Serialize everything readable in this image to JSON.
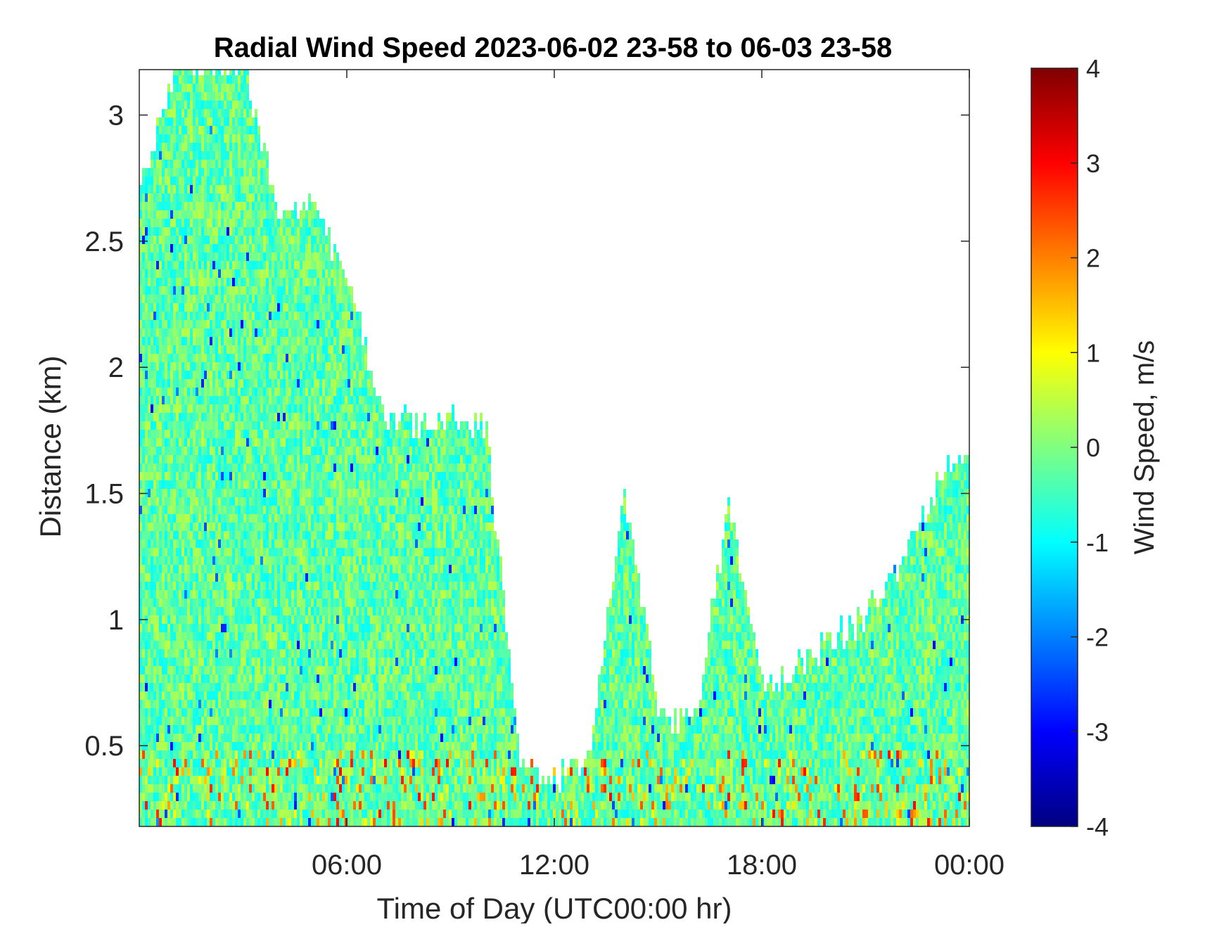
{
  "chart_data": {
    "type": "heatmap",
    "title": "Radial Wind Speed 2023-06-02 23-58 to 06-03 23-58",
    "xlabel": "Time of Day (UTC00:00 hr)",
    "ylabel": "Distance (km)",
    "colorbar_label": "Wind Speed, m/s",
    "x_tick_labels": [
      "06:00",
      "12:00",
      "18:00",
      "00:00"
    ],
    "x_tick_hours": [
      6,
      12,
      18,
      24
    ],
    "xlim_hours": [
      0,
      24
    ],
    "y_ticks": [
      0.5,
      1,
      1.5,
      2,
      2.5,
      3
    ],
    "y_tick_labels": [
      "0.5",
      "1",
      "1.5",
      "2",
      "2.5",
      "3"
    ],
    "ylim": [
      0.18,
      3.18
    ],
    "clim": [
      -4,
      4
    ],
    "colorbar_ticks": [
      4,
      3,
      2,
      1,
      0,
      -1,
      -2,
      -3,
      -4
    ],
    "colorbar_tick_labels": [
      "4",
      "3",
      "2",
      "1",
      "0",
      "-1",
      "-2",
      "-3",
      "-4"
    ],
    "colormap": "jet",
    "grid": false,
    "data_top_km_by_hour": [
      {
        "hour": 0,
        "top_km": 2.7
      },
      {
        "hour": 1,
        "top_km": 3.18
      },
      {
        "hour": 2,
        "top_km": 3.18
      },
      {
        "hour": 3,
        "top_km": 3.18
      },
      {
        "hour": 4,
        "top_km": 2.6
      },
      {
        "hour": 5,
        "top_km": 2.6
      },
      {
        "hour": 6,
        "top_km": 2.35
      },
      {
        "hour": 7,
        "top_km": 1.8
      },
      {
        "hour": 8,
        "top_km": 1.75
      },
      {
        "hour": 9,
        "top_km": 1.78
      },
      {
        "hour": 10,
        "top_km": 1.75
      },
      {
        "hour": 11,
        "top_km": 0.38
      },
      {
        "hour": 12,
        "top_km": 0.35
      },
      {
        "hour": 13,
        "top_km": 0.45
      },
      {
        "hour": 14,
        "top_km": 1.5
      },
      {
        "hour": 15,
        "top_km": 0.6
      },
      {
        "hour": 16,
        "top_km": 0.55
      },
      {
        "hour": 17,
        "top_km": 1.45
      },
      {
        "hour": 18,
        "top_km": 0.7
      },
      {
        "hour": 19,
        "top_km": 0.8
      },
      {
        "hour": 20,
        "top_km": 0.9
      },
      {
        "hour": 21,
        "top_km": 1.0
      },
      {
        "hour": 22,
        "top_km": 1.2
      },
      {
        "hour": 23,
        "top_km": 1.5
      },
      {
        "hour": 24,
        "top_km": 1.7
      }
    ],
    "colors": {
      "dominant_range_m_s": [
        -1,
        0.5
      ],
      "near_surface_max_m_s": 3,
      "missing": "#ffffff"
    }
  }
}
